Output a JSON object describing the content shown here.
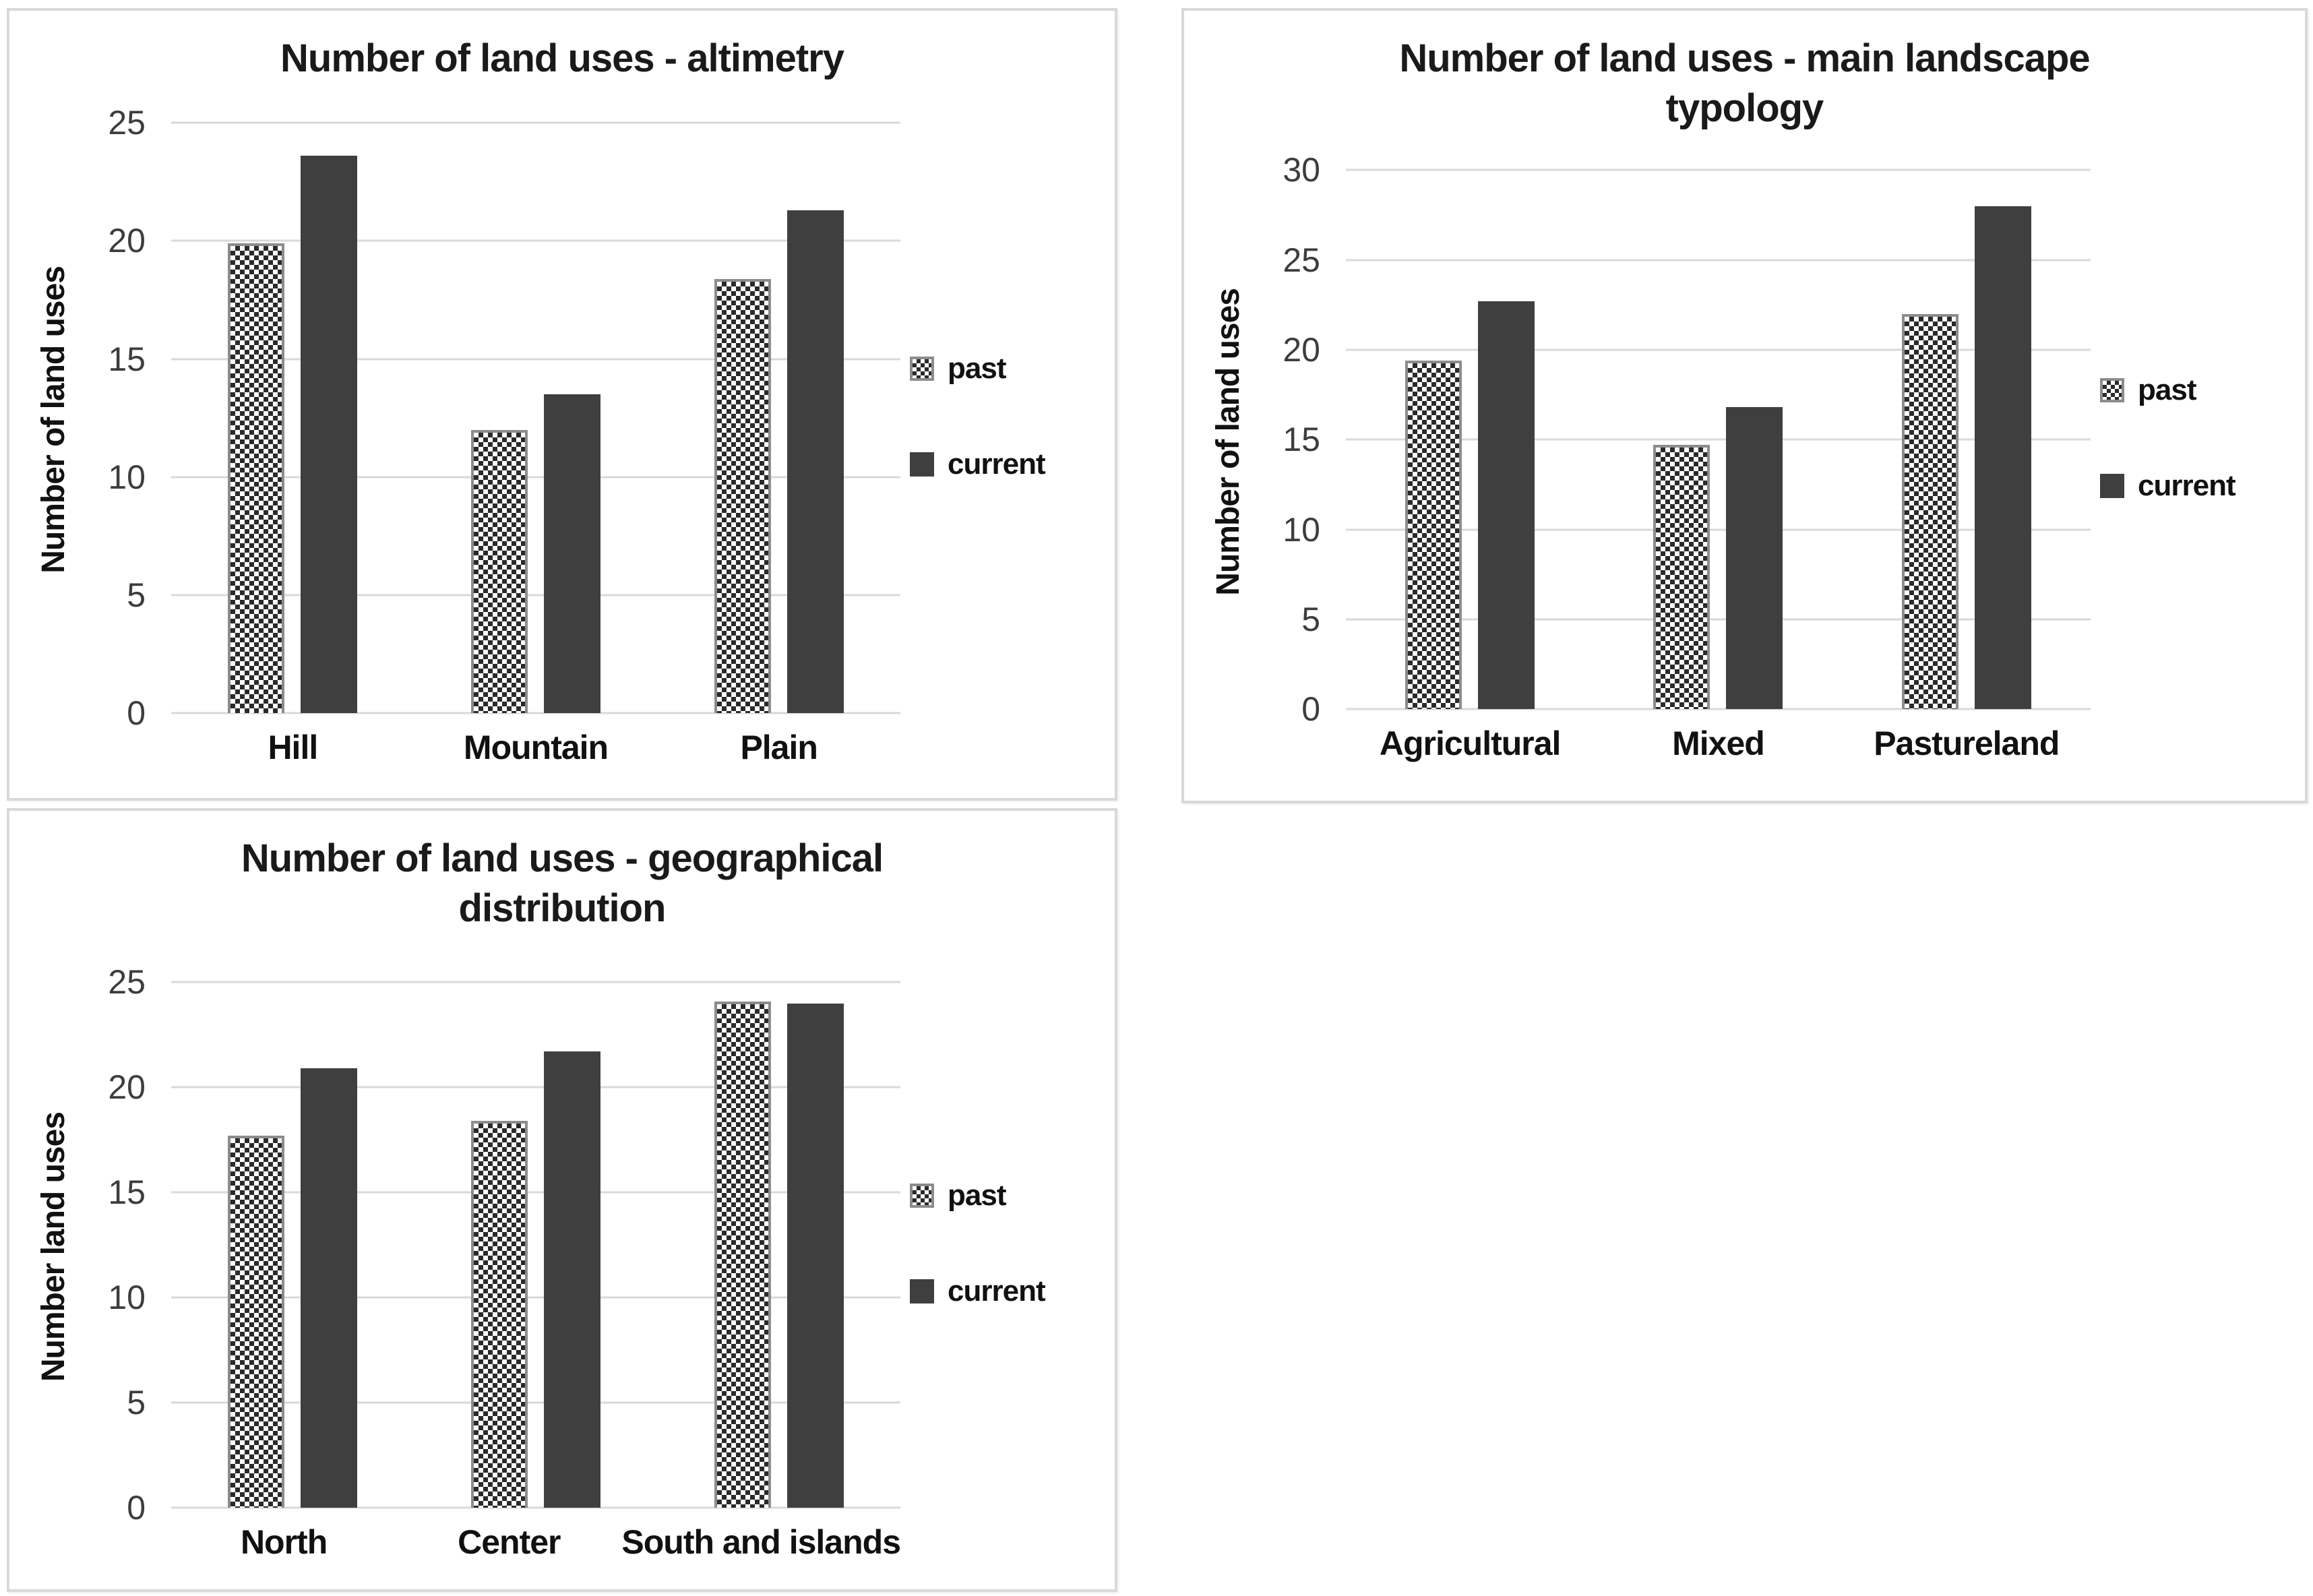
{
  "colors": {
    "current_bar": "#3f3f3f",
    "past_checker": "#2a2a2a",
    "past_border": "#8c8c8c",
    "gridline": "#d9d9d9",
    "text": "#1a1a1a"
  },
  "chart_data": [
    {
      "type": "bar",
      "title": "Number of land uses - altimetry",
      "ylabel": "Number of land uses",
      "xlabel": "",
      "categories": [
        "Hill",
        "Mountain",
        "Plain"
      ],
      "series": [
        {
          "name": "past",
          "values": [
            19.9,
            12.0,
            18.4
          ]
        },
        {
          "name": "current",
          "values": [
            23.6,
            13.5,
            21.3
          ]
        }
      ],
      "ylim": [
        0,
        25
      ],
      "yticks": [
        0,
        5,
        10,
        15,
        20,
        25
      ],
      "grid": true,
      "legend_position": "right"
    },
    {
      "type": "bar",
      "title": "Number of land uses - main landscape typology",
      "ylabel": "Number of land uses",
      "xlabel": "",
      "categories": [
        "Agricultural",
        "Mixed",
        "Pastureland"
      ],
      "series": [
        {
          "name": "past",
          "values": [
            19.4,
            14.7,
            22.0
          ]
        },
        {
          "name": "current",
          "values": [
            22.7,
            16.8,
            28.0
          ]
        }
      ],
      "ylim": [
        0,
        30
      ],
      "yticks": [
        0,
        5,
        10,
        15,
        20,
        25,
        30
      ],
      "grid": true,
      "legend_position": "right"
    },
    {
      "type": "bar",
      "title": "Number of land uses - geographical distribution",
      "ylabel": "Number land uses",
      "xlabel": "",
      "categories": [
        "North",
        "Center",
        "South and islands"
      ],
      "series": [
        {
          "name": "past",
          "values": [
            17.7,
            18.4,
            24.1
          ]
        },
        {
          "name": "current",
          "values": [
            20.9,
            21.7,
            24.0
          ]
        }
      ],
      "ylim": [
        0,
        25
      ],
      "yticks": [
        0,
        5,
        10,
        15,
        20,
        25
      ],
      "grid": true,
      "legend_position": "right"
    }
  ]
}
